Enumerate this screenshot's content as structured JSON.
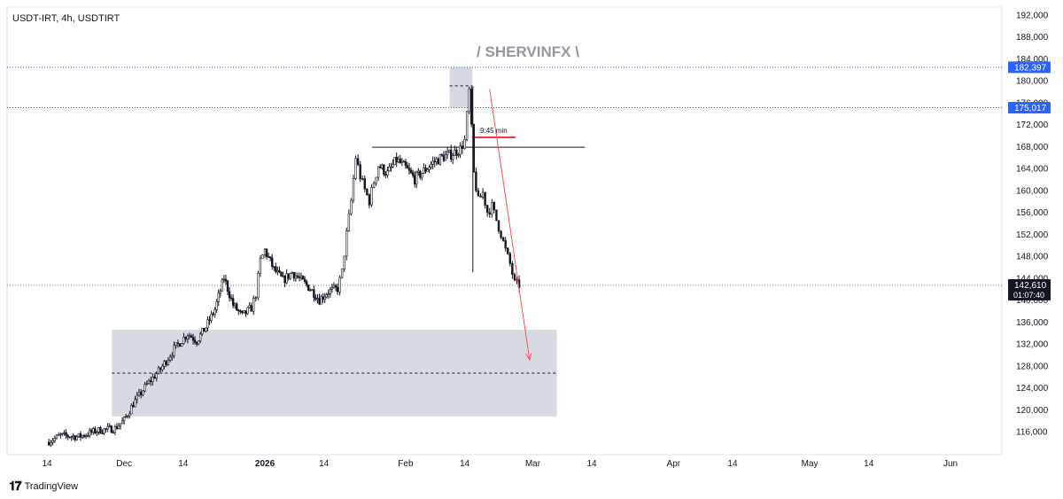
{
  "header": {
    "symbol_line": "USDT-IRT, 4h, USDTIRT"
  },
  "watermark": "/ SHERVINFX \\",
  "footer": {
    "brand": "TradingView",
    "logo_icon": "tradingview-logo-icon"
  },
  "colors": {
    "candle": "#131722",
    "zone": "#d1d4dc",
    "blue_label": "#2962ff",
    "arrow": "#f7525f",
    "red_line": "#f23645",
    "grid_dotted": "#2962ff"
  },
  "chart_data": {
    "type": "candlestick",
    "y_axis": {
      "min": 112000,
      "max": 194000,
      "ticks": [
        "116,000",
        "120,000",
        "124,000",
        "128,000",
        "132,000",
        "136,000",
        "140,000",
        "144,000",
        "148,000",
        "152,000",
        "156,000",
        "160,000",
        "164,000",
        "168,000",
        "172,000",
        "176,000",
        "180,000",
        "184,000",
        "188,000",
        "192,000"
      ],
      "tick_values": [
        116000,
        120000,
        124000,
        128000,
        132000,
        136000,
        140000,
        144000,
        148000,
        152000,
        156000,
        160000,
        164000,
        168000,
        172000,
        176000,
        180000,
        184000,
        188000,
        192000
      ]
    },
    "x_axis": {
      "labels": [
        {
          "text": "14",
          "day": 0
        },
        {
          "text": "Dec",
          "day": 17
        },
        {
          "text": "14",
          "day": 30
        },
        {
          "text": "2026",
          "day": 48,
          "bold": true
        },
        {
          "text": "14",
          "day": 61
        },
        {
          "text": "Feb",
          "day": 79
        },
        {
          "text": "14",
          "day": 92
        },
        {
          "text": "Mar",
          "day": 107
        },
        {
          "text": "14",
          "day": 120
        },
        {
          "text": "Apr",
          "day": 138
        },
        {
          "text": "14",
          "day": 151
        },
        {
          "text": "May",
          "day": 168
        },
        {
          "text": "14",
          "day": 181
        },
        {
          "text": "Jun",
          "day": 199
        }
      ],
      "start_date": "2025-11-14"
    },
    "price_labels": [
      {
        "value": 182397,
        "text": "182,397",
        "style": "blue"
      },
      {
        "value": 175017,
        "text": "175,017",
        "style": "blue"
      },
      {
        "value": 142610,
        "text": "142,610",
        "sub": "01:07:40",
        "style": "dark"
      }
    ],
    "price_path": [
      [
        0,
        114000
      ],
      [
        3,
        115200
      ],
      [
        7,
        115000
      ],
      [
        11,
        116100
      ],
      [
        15,
        116500
      ],
      [
        17,
        118000
      ],
      [
        19,
        121000
      ],
      [
        22,
        124500
      ],
      [
        25,
        127300
      ],
      [
        28,
        131000
      ],
      [
        31,
        133800
      ],
      [
        33,
        132500
      ],
      [
        35,
        135000
      ],
      [
        37,
        138200
      ],
      [
        39,
        144000
      ],
      [
        41,
        139000
      ],
      [
        43,
        137000
      ],
      [
        45,
        138500
      ],
      [
        46,
        141000
      ],
      [
        47,
        147000
      ],
      [
        48,
        149000
      ],
      [
        50,
        145500
      ],
      [
        52,
        143500
      ],
      [
        54,
        145000
      ],
      [
        56,
        143500
      ],
      [
        58,
        142000
      ],
      [
        60,
        140000
      ],
      [
        62,
        141500
      ],
      [
        64,
        142000
      ],
      [
        65,
        145000
      ],
      [
        66,
        152000
      ],
      [
        67,
        158000
      ],
      [
        68,
        166000
      ],
      [
        69,
        162500
      ],
      [
        70,
        160000
      ],
      [
        71,
        158000
      ],
      [
        72,
        161500
      ],
      [
        73,
        164500
      ],
      [
        75,
        163000
      ],
      [
        77,
        165500
      ],
      [
        79,
        164000
      ],
      [
        81,
        162000
      ],
      [
        83,
        163500
      ],
      [
        85,
        165000
      ],
      [
        87,
        166000
      ],
      [
        89,
        166500
      ],
      [
        91,
        167500
      ],
      [
        92,
        169000
      ],
      [
        93,
        178000
      ],
      [
        93.5,
        171000
      ],
      [
        94,
        163000
      ],
      [
        95,
        158000
      ],
      [
        96,
        159500
      ],
      [
        97,
        156000
      ],
      [
        98,
        157000
      ],
      [
        99,
        154500
      ],
      [
        100,
        152000
      ],
      [
        101,
        149000
      ],
      [
        102,
        146500
      ],
      [
        103,
        143000
      ],
      [
        104,
        142610
      ]
    ],
    "annotations": {
      "top_zone": {
        "day_start": 88.7,
        "day_end": 93.7,
        "price_high": 182397,
        "price_low": 175017,
        "mid": 179000
      },
      "bottom_zone": {
        "day_start": 14.3,
        "day_end": 112.3,
        "price_high": 134500,
        "price_low": 118700,
        "mid": 126600
      },
      "resistance_line": {
        "day_start": 71.6,
        "day_end": 118.5,
        "price": 167800
      },
      "timing_label": {
        "text": "9:45 min",
        "day_start": 93.6,
        "day_end": 103.2,
        "price": 169600
      },
      "target_arrow": {
        "from_day": 97.5,
        "from_price": 178400,
        "to_day": 106.3,
        "to_price": 129000
      },
      "wick_low": {
        "day": 93.8,
        "price": 145000
      }
    }
  }
}
